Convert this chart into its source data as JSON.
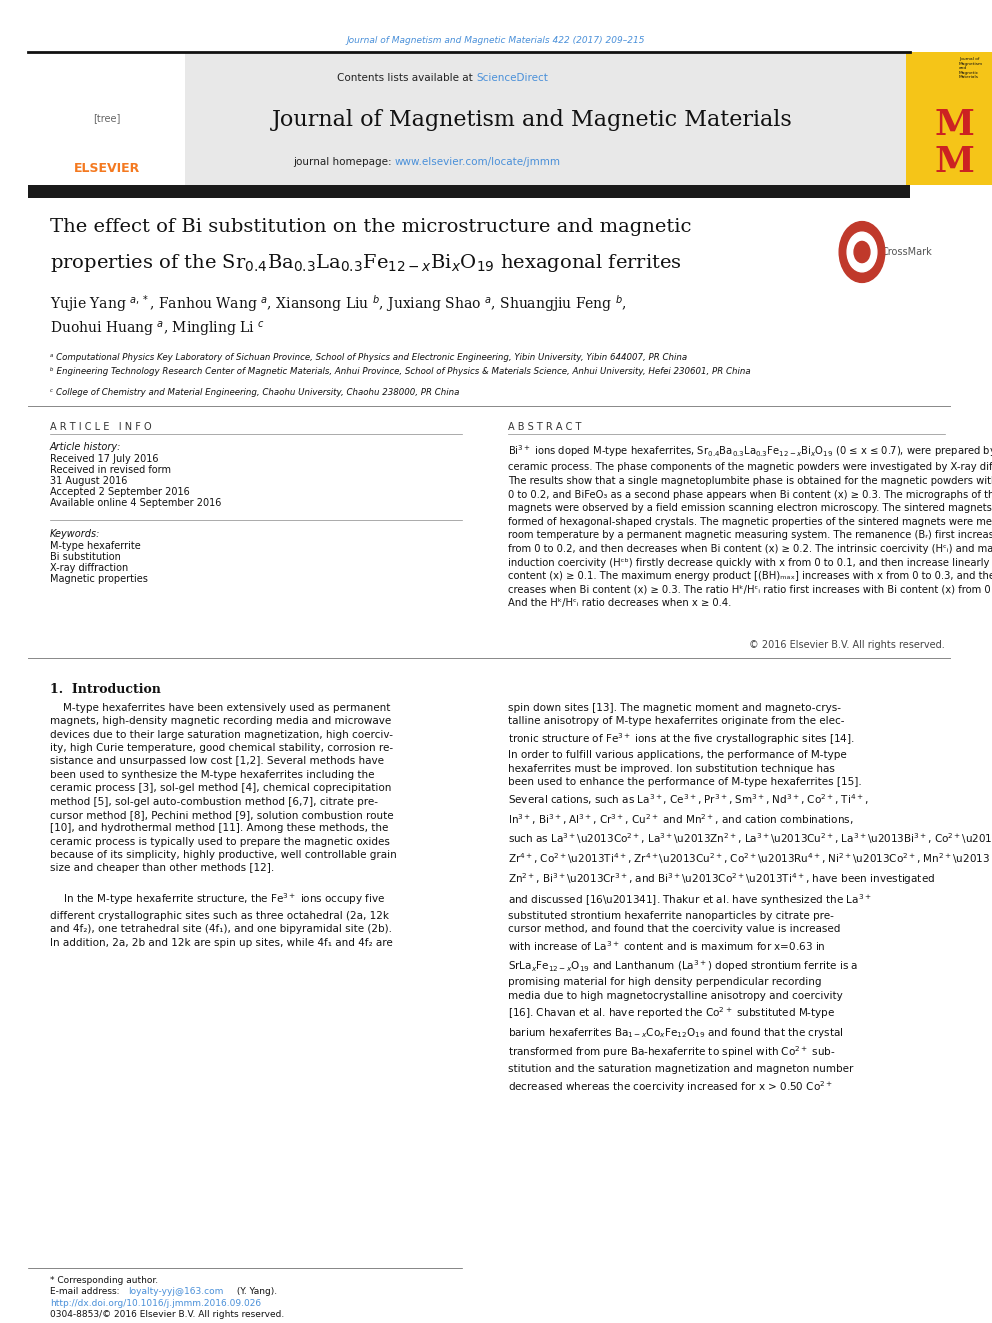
{
  "page_width": 9.92,
  "page_height": 13.23,
  "background_color": "#ffffff",
  "top_margin_text": "Journal of Magnetism and Magnetic Materials 422 (2017) 209–215",
  "top_margin_color": "#4a90d9",
  "header_bg_color": "#e8e8e8",
  "header_title": "Journal of Magnetism and Magnetic Materials",
  "header_contents_text": "Contents lists available at ",
  "header_sciencedirect": "ScienceDirect",
  "header_homepage_text": "journal homepage: ",
  "header_homepage_url": "www.elsevier.com/locate/jmmm",
  "link_color": "#4a90d9",
  "black_bar_color": "#1a1a1a",
  "article_title_line1": "The effect of Bi substitution on the microstructure and magnetic",
  "article_info_title": "A R T I C L E   I N F O",
  "article_history_title": "Article history:",
  "keywords_title": "Keywords:",
  "keywords": [
    "M-type hexaferrite",
    "Bi substitution",
    "X-ray diffraction",
    "Magnetic properties"
  ],
  "abstract_title": "A B S T R A C T",
  "copyright_text": "© 2016 Elsevier B.V. All rights reserved.",
  "section1_title": "1.  Introduction",
  "affil_a": "ᵃ Computational Physics Key Laboratory of Sichuan Province, School of Physics and Electronic Engineering, Yibin University, Yibin 644007, PR China",
  "affil_b": "ᵇ Engineering Technology Research Center of Magnetic Materials, Anhui Province, School of Physics & Materials Science, Anhui University, Hefei 230601, PR China",
  "affil_c": "ᶜ College of Chemistry and Material Engineering, Chaohu University, Chaohu 238000, PR China",
  "history_lines": [
    "Received 17 July 2016",
    "Received in revised form",
    "31 August 2016",
    "Accepted 2 September 2016",
    "Available online 4 September 2016"
  ],
  "doi_color": "#4a90d9",
  "elsevier_orange": "#f47920",
  "journal_mm_yellow": "#f5c518",
  "journal_mm_red": "#cc2222"
}
